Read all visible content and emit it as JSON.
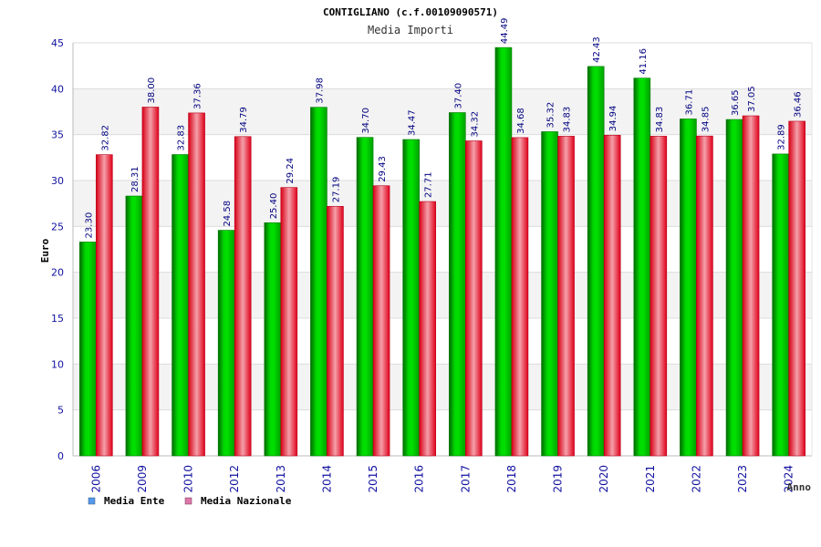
{
  "chart_data": {
    "type": "bar",
    "title": "CONTIGLIANO (c.f.00109090571)",
    "subtitle": "Media Importi",
    "xlabel": "Anno",
    "ylabel": "Euro",
    "ylim": [
      0,
      45
    ],
    "yticks": [
      0,
      5,
      10,
      15,
      20,
      25,
      30,
      35,
      40,
      45
    ],
    "grid": true,
    "legend_position": "bottom-left",
    "categories": [
      "2006",
      "2009",
      "2010",
      "2012",
      "2013",
      "2014",
      "2015",
      "2016",
      "2017",
      "2018",
      "2019",
      "2020",
      "2021",
      "2022",
      "2023",
      "2024"
    ],
    "series": [
      {
        "name": "Media Ente",
        "color": "#00c000",
        "values": [
          23.3,
          28.31,
          32.83,
          24.58,
          25.4,
          37.98,
          34.7,
          34.47,
          37.4,
          44.49,
          35.32,
          42.43,
          41.16,
          36.71,
          36.65,
          32.89
        ],
        "labels": [
          "23.30",
          "28.31",
          "32.83",
          "24.58",
          "25.40",
          "37.98",
          "34.70",
          "34.47",
          "37.40",
          "44.49",
          "35.32",
          "42.43",
          "41.16",
          "36.71",
          "36.65",
          "32.89"
        ]
      },
      {
        "name": "Media Nazionale",
        "color": "#e8001c",
        "values": [
          32.82,
          38.0,
          37.36,
          34.79,
          29.24,
          27.19,
          29.43,
          27.71,
          34.32,
          34.68,
          34.83,
          34.94,
          34.83,
          34.85,
          37.05,
          36.46
        ],
        "labels": [
          "32.82",
          "38.00",
          "37.36",
          "34.79",
          "29.24",
          "27.19",
          "29.43",
          "27.71",
          "34.32",
          "34.68",
          "34.83",
          "34.94",
          "34.83",
          "34.85",
          "37.05",
          "36.46"
        ]
      }
    ],
    "legend": [
      {
        "label": "Media Ente",
        "color": "#5599ee"
      },
      {
        "label": "Media Nazionale",
        "color": "#dd77aa"
      }
    ]
  }
}
